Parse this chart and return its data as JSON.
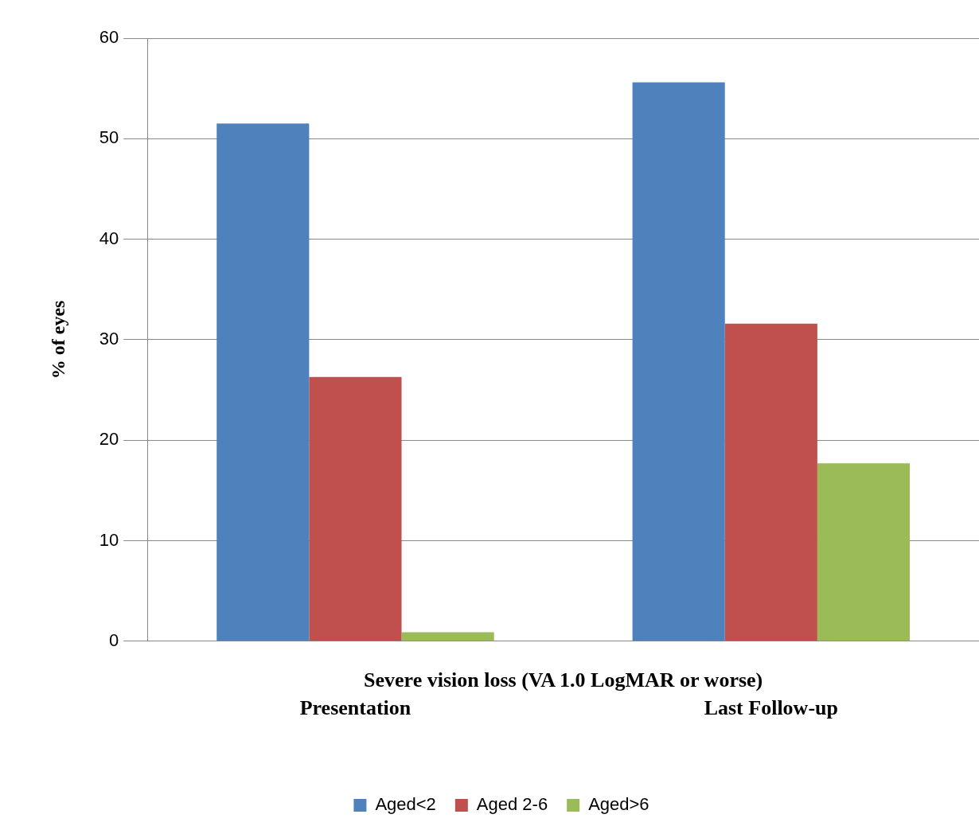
{
  "chart_data": {
    "type": "bar",
    "xlabel": "Severe vision loss (VA 1.0 LogMAR or worse)",
    "ylabel": "% of eyes",
    "categories": [
      "Presentation",
      "Last Follow-up"
    ],
    "series": [
      {
        "name": "Aged<2",
        "color": "#4f81bd",
        "values": [
          51.5,
          55.6
        ]
      },
      {
        "name": "Aged 2-6",
        "color": "#c0504d",
        "values": [
          26.3,
          31.6
        ]
      },
      {
        "name": "Aged>6",
        "color": "#9bbb59",
        "values": [
          0.9,
          17.7
        ]
      }
    ],
    "ylim": [
      0,
      60
    ],
    "yticks": [
      0,
      10,
      20,
      30,
      40,
      50,
      60
    ],
    "grid": "y",
    "legend": "bottom"
  }
}
